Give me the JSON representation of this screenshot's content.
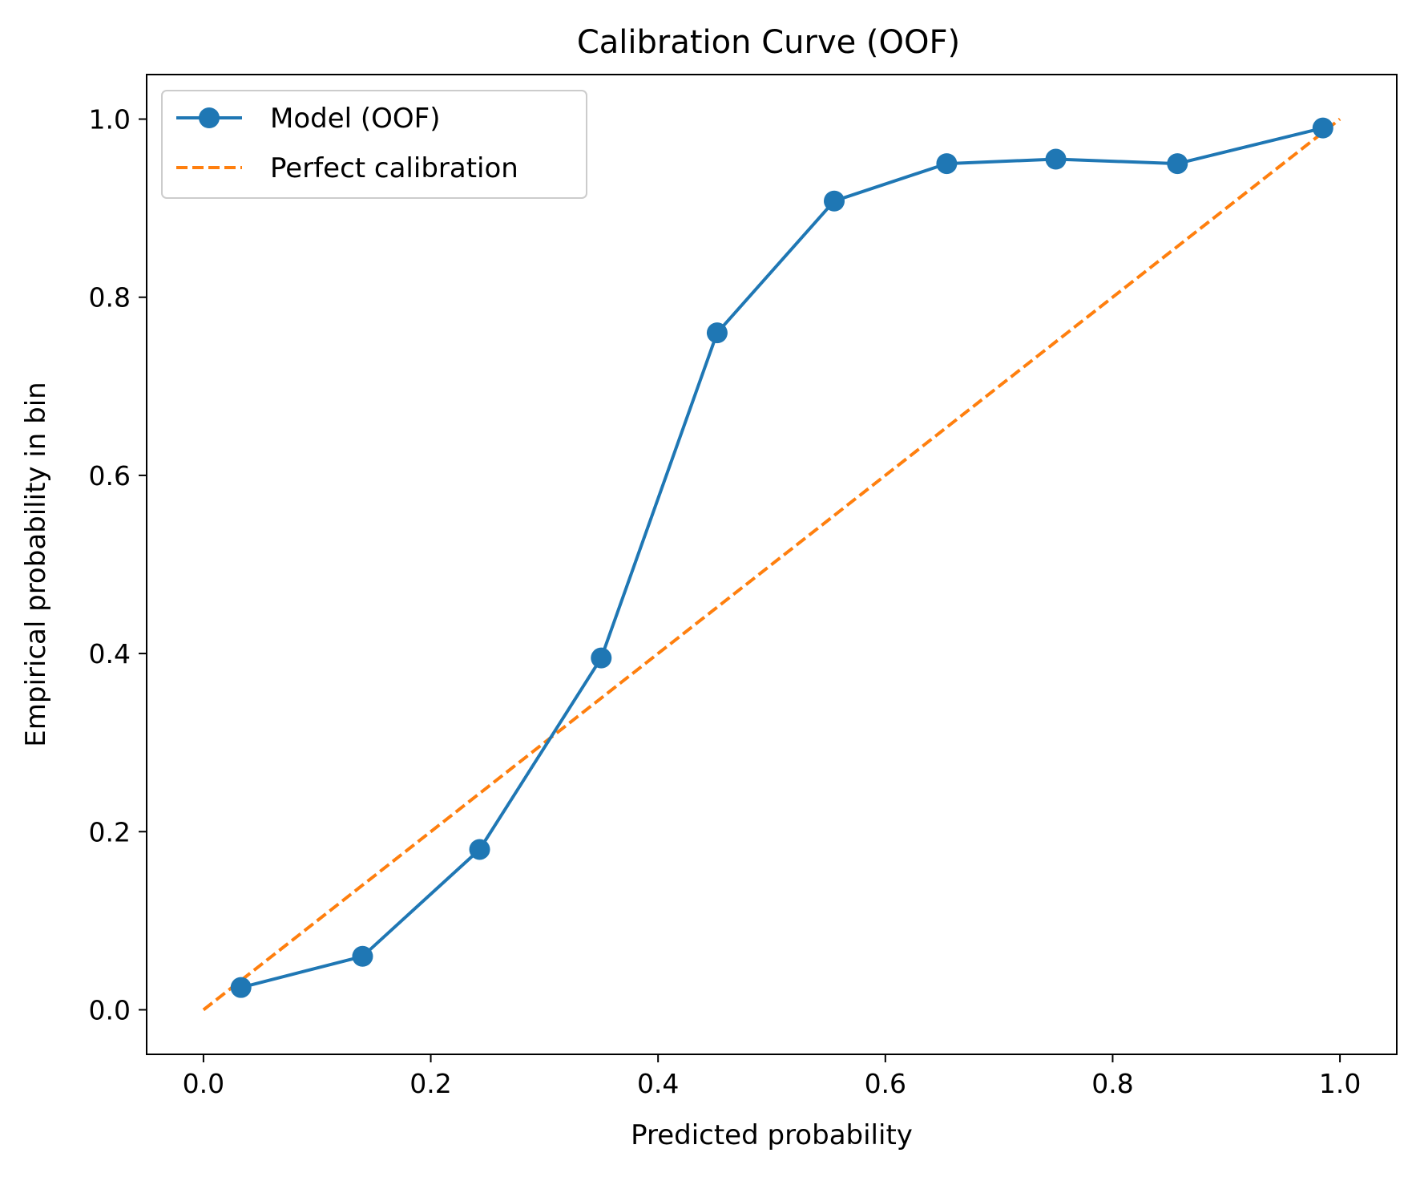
{
  "chart_data": {
    "type": "line",
    "title": "Calibration Curve (OOF)",
    "xlabel": "Predicted probability",
    "ylabel": "Empirical probability in bin",
    "xlim": [
      -0.05,
      1.05
    ],
    "ylim": [
      -0.05,
      1.05
    ],
    "xticks": [
      "0.0",
      "0.2",
      "0.4",
      "0.6",
      "0.8",
      "1.0"
    ],
    "yticks": [
      "0.0",
      "0.2",
      "0.4",
      "0.6",
      "0.8",
      "1.0"
    ],
    "grid": false,
    "legend_position": "top-left",
    "series": [
      {
        "name": "Model (OOF)",
        "style": "solid-with-markers",
        "color": "#1f77b4",
        "x": [
          0.033,
          0.14,
          0.243,
          0.35,
          0.452,
          0.555,
          0.654,
          0.75,
          0.857,
          0.985
        ],
        "y": [
          0.025,
          0.06,
          0.18,
          0.395,
          0.76,
          0.908,
          0.95,
          0.955,
          0.95,
          0.99
        ]
      },
      {
        "name": "Perfect calibration",
        "style": "dashed",
        "color": "#ff7f0e",
        "x": [
          0.0,
          1.0
        ],
        "y": [
          0.0,
          1.0
        ]
      }
    ]
  }
}
